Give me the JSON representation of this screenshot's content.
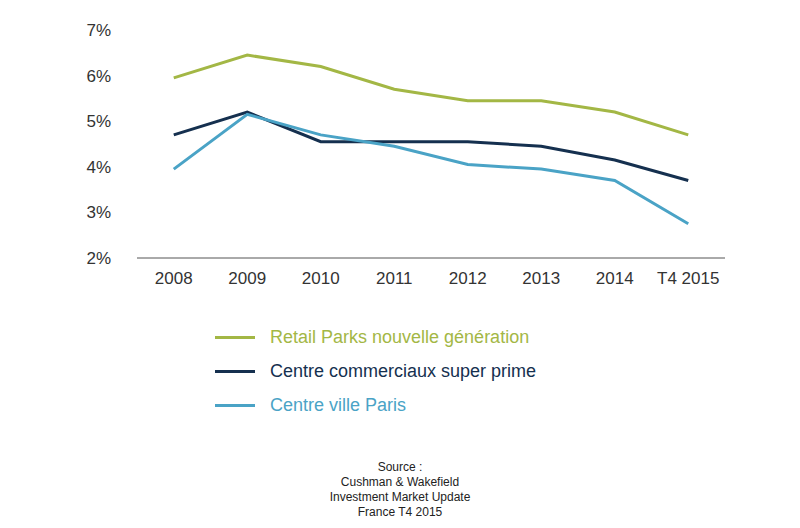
{
  "chart_data": {
    "type": "line",
    "categories": [
      "2008",
      "2009",
      "2010",
      "2011",
      "2012",
      "2013",
      "2014",
      "T4 2015"
    ],
    "series": [
      {
        "name": "Retail Parks nouvelle génération",
        "color": "#a3b745",
        "values": [
          5.95,
          6.45,
          6.2,
          5.7,
          5.45,
          5.45,
          5.2,
          4.7
        ]
      },
      {
        "name": "Centre commerciaux super prime",
        "color": "#15304f",
        "values": [
          4.7,
          5.2,
          4.55,
          4.55,
          4.55,
          4.45,
          4.15,
          3.7
        ]
      },
      {
        "name": "Centre ville Paris",
        "color": "#4aa3c6",
        "values": [
          3.95,
          5.15,
          4.7,
          4.45,
          4.05,
          3.95,
          3.7,
          2.75
        ]
      }
    ],
    "ylim": [
      2,
      7
    ],
    "yticks": [
      {
        "value": 2,
        "label": "2%"
      },
      {
        "value": 3,
        "label": "3%"
      },
      {
        "value": 4,
        "label": "4%"
      },
      {
        "value": 5,
        "label": "5%"
      },
      {
        "value": 6,
        "label": "6%"
      },
      {
        "value": 7,
        "label": "7%"
      }
    ],
    "grid": false,
    "annotations": [
      "Source :",
      "Cushman & Wakefield",
      "Investment Market Update",
      "France T4 2015"
    ]
  }
}
